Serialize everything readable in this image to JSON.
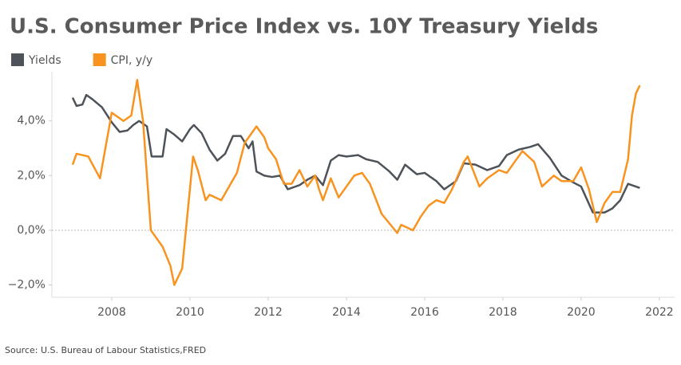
{
  "chart_data": {
    "type": "line",
    "title": "U.S. Consumer Price Index vs. 10Y Treasury Yields",
    "source": "Source: U.S. Bureau of Labour Statistics,FRED",
    "legend": "top-left",
    "grid": false,
    "zero_line": true,
    "xlim": [
      2006.47,
      2022.39
    ],
    "xticks": [
      2008,
      2010,
      2012,
      2014,
      2016,
      2018,
      2020,
      2022
    ],
    "ylim": [
      -2.45,
      5.8
    ],
    "yticks": [
      {
        "value": -2,
        "label": "−2,0%"
      },
      {
        "value": 0,
        "label": "0,0%"
      },
      {
        "value": 2,
        "label": "2,0%"
      },
      {
        "value": 4,
        "label": "4,0%"
      }
    ],
    "series": [
      {
        "name": "Yields",
        "color": "#4d5358",
        "x": [
          2007.0,
          2007.1,
          2007.25,
          2007.35,
          2007.5,
          2007.75,
          2008.0,
          2008.2,
          2008.4,
          2008.55,
          2008.7,
          2008.9,
          2009.02,
          2009.3,
          2009.4,
          2009.6,
          2009.8,
          2010.0,
          2010.1,
          2010.3,
          2010.5,
          2010.7,
          2010.9,
          2011.1,
          2011.3,
          2011.5,
          2011.6,
          2011.7,
          2011.9,
          2012.1,
          2012.3,
          2012.5,
          2012.8,
          2013.0,
          2013.2,
          2013.4,
          2013.6,
          2013.8,
          2014.0,
          2014.3,
          2014.5,
          2014.8,
          2015.1,
          2015.3,
          2015.5,
          2015.8,
          2016.0,
          2016.3,
          2016.5,
          2016.8,
          2017.0,
          2017.3,
          2017.6,
          2017.9,
          2018.1,
          2018.4,
          2018.7,
          2018.9,
          2019.2,
          2019.5,
          2019.8,
          2020.0,
          2020.3,
          2020.6,
          2020.8,
          2021.0,
          2021.2,
          2021.5
        ],
        "values": [
          4.85,
          4.55,
          4.6,
          4.95,
          4.8,
          4.5,
          3.95,
          3.6,
          3.65,
          3.85,
          4.0,
          3.8,
          2.7,
          2.7,
          3.7,
          3.5,
          3.25,
          3.7,
          3.85,
          3.55,
          2.95,
          2.55,
          2.8,
          3.45,
          3.45,
          3.0,
          3.25,
          2.15,
          2.0,
          1.95,
          2.0,
          1.5,
          1.65,
          1.85,
          2.0,
          1.65,
          2.55,
          2.75,
          2.7,
          2.75,
          2.6,
          2.5,
          2.15,
          1.85,
          2.4,
          2.05,
          2.1,
          1.8,
          1.5,
          1.8,
          2.45,
          2.4,
          2.2,
          2.35,
          2.75,
          2.95,
          3.05,
          3.15,
          2.65,
          2.0,
          1.75,
          1.6,
          0.65,
          0.65,
          0.8,
          1.1,
          1.7,
          1.55
        ]
      },
      {
        "name": "CPI, y/y",
        "color": "#f7931e",
        "x": [
          2007.0,
          2007.1,
          2007.4,
          2007.7,
          2007.9,
          2008.0,
          2008.3,
          2008.5,
          2008.65,
          2008.8,
          2009.0,
          2009.3,
          2009.5,
          2009.6,
          2009.8,
          2010.08,
          2010.2,
          2010.4,
          2010.5,
          2010.8,
          2011.0,
          2011.2,
          2011.4,
          2011.6,
          2011.7,
          2011.9,
          2012.0,
          2012.2,
          2012.4,
          2012.6,
          2012.8,
          2013.0,
          2013.2,
          2013.3,
          2013.4,
          2013.6,
          2013.8,
          2014.0,
          2014.2,
          2014.4,
          2014.6,
          2014.9,
          2015.3,
          2015.4,
          2015.7,
          2015.9,
          2016.1,
          2016.3,
          2016.5,
          2016.7,
          2017.0,
          2017.1,
          2017.4,
          2017.6,
          2017.9,
          2018.1,
          2018.3,
          2018.5,
          2018.8,
          2019.0,
          2019.3,
          2019.5,
          2019.8,
          2020.0,
          2020.2,
          2020.4,
          2020.6,
          2020.8,
          2021.0,
          2021.2,
          2021.3,
          2021.4,
          2021.5
        ],
        "values": [
          2.4,
          2.8,
          2.7,
          1.9,
          3.5,
          4.3,
          4.0,
          4.2,
          5.5,
          4.0,
          0.0,
          -0.6,
          -1.3,
          -2.0,
          -1.4,
          2.7,
          2.2,
          1.1,
          1.3,
          1.1,
          1.6,
          2.1,
          3.2,
          3.6,
          3.8,
          3.4,
          3.0,
          2.6,
          1.7,
          1.7,
          2.2,
          1.6,
          2.0,
          1.5,
          1.1,
          1.9,
          1.2,
          1.6,
          2.0,
          2.1,
          1.7,
          0.6,
          -0.1,
          0.2,
          0.0,
          0.5,
          0.9,
          1.1,
          1.0,
          1.5,
          2.5,
          2.7,
          1.6,
          1.9,
          2.2,
          2.1,
          2.5,
          2.9,
          2.5,
          1.6,
          2.0,
          1.8,
          1.8,
          2.3,
          1.5,
          0.3,
          1.0,
          1.4,
          1.4,
          2.6,
          4.2,
          5.0,
          5.3
        ]
      }
    ]
  }
}
